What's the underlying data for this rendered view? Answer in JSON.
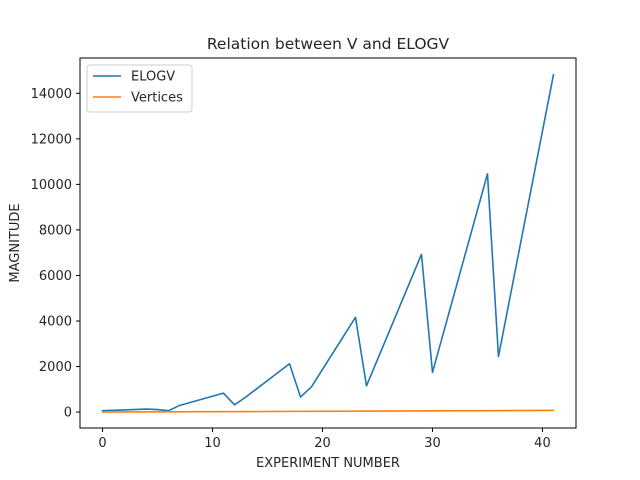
{
  "chart_data": {
    "type": "line",
    "title": "Relation between V and ELOGV",
    "xlabel": "EXPERIMENT NUMBER",
    "ylabel": "MAGNITUDE",
    "xlim": [
      -2.05,
      43.05
    ],
    "ylim": [
      -700,
      15550
    ],
    "xticks": [
      0,
      10,
      20,
      30,
      40
    ],
    "yticks": [
      0,
      2000,
      4000,
      6000,
      8000,
      10000,
      12000,
      14000
    ],
    "grid": false,
    "legend_position": "top-left",
    "series": [
      {
        "name": "ELOGV",
        "color": "#1f77b4",
        "x": [
          0,
          4,
          5,
          6,
          7,
          11,
          12,
          13,
          17,
          18,
          19,
          23,
          24,
          29,
          30,
          35,
          36,
          41
        ],
        "y": [
          60,
          130,
          110,
          60,
          290,
          830,
          320,
          650,
          2120,
          660,
          1110,
          4160,
          1150,
          6930,
          1740,
          10460,
          2440,
          14810
        ]
      },
      {
        "name": "Vertices",
        "color": "#ff7f0e",
        "x": [
          0,
          5,
          6,
          10,
          15,
          20,
          25,
          30,
          35,
          40,
          41
        ],
        "y": [
          5,
          10,
          12,
          18,
          25,
          35,
          45,
          55,
          62,
          70,
          72
        ]
      }
    ]
  }
}
